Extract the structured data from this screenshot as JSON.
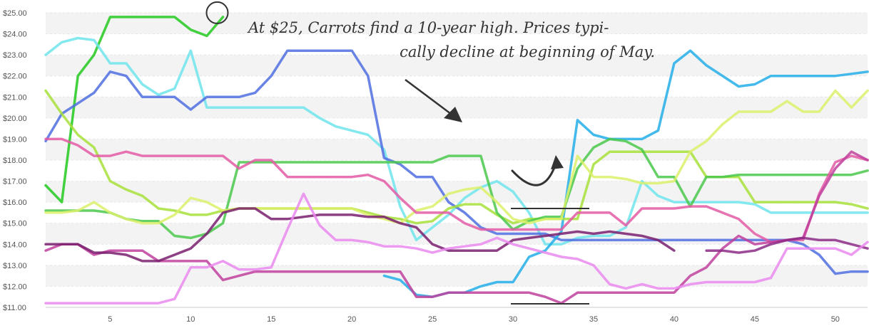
{
  "annotation": {
    "line1": "At $25, Carrots find a 10-year high. Prices typi-",
    "line2": "cally decline at beginning of May."
  },
  "chart_data": {
    "type": "line",
    "title": "",
    "xlabel": "",
    "ylabel": "",
    "xlim": [
      1,
      52
    ],
    "ylim": [
      11,
      25
    ],
    "x_ticks": [
      5,
      10,
      15,
      20,
      25,
      30,
      35,
      40,
      45,
      50
    ],
    "y_ticks": [
      "$11.00",
      "$12.00",
      "$13.00",
      "$14.00",
      "$15.00",
      "$16.00",
      "$17.00",
      "$18.00",
      "$19.00",
      "$20.00",
      "$21.00",
      "$22.00",
      "$23.00",
      "$24.00",
      "$25.00"
    ],
    "grid": "horizontal-bands",
    "legend": "none",
    "highlight_point": {
      "x": 12,
      "y": 24.8
    },
    "series": [
      {
        "color": "#22c91f",
        "x": [
          1,
          2,
          3,
          4,
          5,
          6,
          7,
          8,
          9,
          10,
          11,
          12
        ],
        "values": [
          16.8,
          16.0,
          22.0,
          23.0,
          24.8,
          24.8,
          24.8,
          24.8,
          24.8,
          24.2,
          23.9,
          24.8
        ]
      },
      {
        "color": "#6fe4ec",
        "x": [
          1,
          2,
          3,
          4,
          5,
          6,
          7,
          8,
          9,
          10,
          11,
          12,
          13,
          14,
          15,
          16,
          17,
          18,
          19,
          20,
          21,
          22,
          23,
          24,
          25,
          26,
          27,
          28,
          29,
          30,
          31,
          32,
          33,
          34,
          35,
          36,
          37,
          38,
          39,
          40,
          41,
          42,
          43,
          44,
          45,
          46,
          47,
          48,
          49,
          50,
          51,
          52
        ],
        "values": [
          23.0,
          23.6,
          23.8,
          23.7,
          22.6,
          22.6,
          21.6,
          21.1,
          21.4,
          23.2,
          20.5,
          20.5,
          20.5,
          20.5,
          20.5,
          20.5,
          20.5,
          20.0,
          19.6,
          19.4,
          19.2,
          18.5,
          15.8,
          14.2,
          14.8,
          15.4,
          16.2,
          16.7,
          17.0,
          16.5,
          15.5,
          14.0,
          14.0,
          14.3,
          14.4,
          14.4,
          14.8,
          17.0,
          16.3,
          16.0,
          16.0,
          16.0,
          16.0,
          16.0,
          15.9,
          15.5,
          15.5,
          15.5,
          15.5,
          15.5,
          15.5,
          15.5
        ]
      },
      {
        "color": "#4f6fe0",
        "x": [
          1,
          2,
          3,
          4,
          5,
          6,
          7,
          8,
          9,
          10,
          11,
          12,
          13,
          14,
          15,
          16,
          17,
          18,
          19,
          20,
          21,
          22,
          23,
          24,
          25,
          26,
          27,
          28,
          29,
          30,
          31,
          32,
          33,
          34,
          35,
          36,
          37,
          38,
          39,
          40,
          41,
          42,
          43,
          44,
          45,
          46,
          47,
          48,
          49,
          50,
          51,
          52
        ],
        "values": [
          18.9,
          20.2,
          20.7,
          21.2,
          22.2,
          22.0,
          21.0,
          21.0,
          21.0,
          20.4,
          21.0,
          21.0,
          21.0,
          21.2,
          22.0,
          23.2,
          23.2,
          23.2,
          23.2,
          23.2,
          22.0,
          18.1,
          17.8,
          17.2,
          17.2,
          16.0,
          15.5,
          14.8,
          14.5,
          14.5,
          14.5,
          14.5,
          14.2,
          14.2,
          14.2,
          14.2,
          14.2,
          14.2,
          14.2,
          14.2,
          14.2,
          14.2,
          14.2,
          14.2,
          14.2,
          14.2,
          14.2,
          14.0,
          13.5,
          12.6,
          12.7,
          12.7
        ]
      },
      {
        "color": "#22aee8",
        "x": [
          22,
          23,
          24,
          25,
          26,
          27,
          28,
          29,
          30,
          31,
          32,
          33,
          34,
          35,
          36,
          37,
          38,
          39,
          40,
          41,
          42,
          43,
          44,
          45,
          46,
          47,
          48,
          49,
          50,
          51,
          52
        ],
        "values": [
          12.5,
          12.3,
          11.6,
          11.5,
          11.7,
          11.7,
          12.0,
          12.2,
          12.2,
          13.4,
          13.7,
          14.6,
          19.9,
          19.2,
          19.0,
          19.0,
          19.0,
          19.4,
          22.6,
          23.2,
          22.5,
          22.0,
          21.5,
          21.6,
          22.0,
          22.0,
          22.0,
          22.0,
          22.0,
          22.1,
          22.2
        ]
      },
      {
        "color": "#a7e03a",
        "x": [
          1,
          2,
          3,
          4,
          5,
          6,
          7,
          8,
          9,
          10,
          11,
          12,
          13,
          14,
          15,
          16,
          17,
          18,
          19,
          20,
          21,
          22,
          23,
          24,
          25,
          26,
          27,
          28,
          29,
          30,
          31,
          32,
          33,
          34,
          35,
          36,
          37,
          38,
          39,
          40,
          41,
          42,
          43,
          44,
          45,
          46,
          47,
          48,
          49,
          50,
          51,
          52
        ],
        "values": [
          21.3,
          20.2,
          19.2,
          18.6,
          17.0,
          16.6,
          16.3,
          15.7,
          15.6,
          15.4,
          15.4,
          15.6,
          15.7,
          15.7,
          15.7,
          15.7,
          15.7,
          15.7,
          15.7,
          15.7,
          15.5,
          15.3,
          15.2,
          15.0,
          15.1,
          15.7,
          15.9,
          15.9,
          15.4,
          15.0,
          15.2,
          15.2,
          15.2,
          15.2,
          17.8,
          18.4,
          18.4,
          18.4,
          18.4,
          18.4,
          18.4,
          17.2,
          17.2,
          17.2,
          16.0,
          16.0,
          16.0,
          16.0,
          16.0,
          16.0,
          15.9,
          15.7
        ]
      },
      {
        "color": "#49c84a",
        "x": [
          1,
          2,
          3,
          4,
          5,
          6,
          7,
          8,
          9,
          10,
          11,
          12,
          13,
          14,
          15,
          16,
          17,
          18,
          19,
          20,
          21,
          22,
          23,
          24,
          25,
          26,
          27,
          28,
          29,
          30,
          31,
          32,
          33,
          34,
          35,
          36,
          37,
          38,
          39,
          40,
          41,
          42,
          43,
          44,
          45,
          46,
          47,
          48,
          49,
          50,
          51,
          52
        ],
        "values": [
          15.6,
          15.6,
          15.6,
          15.6,
          15.5,
          15.2,
          15.1,
          15.1,
          14.4,
          14.3,
          14.5,
          15.0,
          17.9,
          17.9,
          17.9,
          17.9,
          17.9,
          17.9,
          17.9,
          17.9,
          17.9,
          17.9,
          17.9,
          17.9,
          17.9,
          18.2,
          18.2,
          18.2,
          15.5,
          14.7,
          15.1,
          15.3,
          15.3,
          17.6,
          18.6,
          19.0,
          18.9,
          18.5,
          17.2,
          17.2,
          15.8,
          17.2,
          17.2,
          17.3,
          17.3,
          17.3,
          17.3,
          17.3,
          17.3,
          17.3,
          17.3,
          17.5
        ]
      },
      {
        "color": "#dcf06a",
        "x": [
          1,
          2,
          3,
          4,
          5,
          6,
          7,
          8,
          9,
          10,
          11,
          12,
          13,
          14,
          15,
          16,
          17,
          18,
          19,
          20,
          21,
          22,
          23,
          24,
          25,
          26,
          27,
          28,
          29,
          30,
          31,
          32,
          33,
          34,
          35,
          36,
          37,
          38,
          39,
          40,
          41,
          42,
          43,
          44,
          45,
          46,
          47,
          48,
          49,
          50,
          51,
          52
        ],
        "values": [
          15.5,
          15.5,
          15.6,
          16.0,
          15.5,
          15.2,
          15.0,
          15.0,
          15.4,
          16.2,
          16.0,
          15.6,
          15.7,
          15.7,
          15.7,
          15.7,
          15.7,
          15.7,
          15.7,
          15.7,
          15.4,
          15.2,
          15.0,
          15.6,
          15.8,
          16.4,
          16.6,
          16.7,
          16.0,
          15.2,
          15.0,
          15.2,
          15.2,
          18.2,
          17.2,
          17.2,
          17.1,
          16.9,
          16.9,
          17.0,
          18.4,
          18.9,
          19.7,
          20.3,
          20.3,
          20.3,
          20.8,
          20.3,
          20.3,
          21.3,
          20.5,
          21.3
        ]
      },
      {
        "color": "#e35aa6",
        "x": [
          1,
          2,
          3,
          4,
          5,
          6,
          7,
          8,
          9,
          10,
          11,
          12,
          13,
          14,
          15,
          16,
          17,
          18,
          19,
          20,
          21,
          22,
          23,
          24,
          25,
          26,
          27,
          28,
          29,
          30,
          31,
          32,
          33,
          34,
          35,
          36,
          37,
          38,
          39,
          40,
          41,
          42,
          43,
          44,
          45,
          46,
          47,
          48,
          49,
          50,
          51,
          52
        ],
        "values": [
          19.0,
          19.0,
          18.7,
          18.2,
          18.2,
          18.4,
          18.2,
          18.2,
          18.2,
          18.2,
          18.2,
          18.2,
          17.6,
          18.0,
          18.0,
          17.2,
          17.2,
          17.2,
          17.2,
          17.2,
          17.3,
          17.0,
          16.2,
          15.5,
          15.5,
          15.5,
          15.0,
          14.7,
          14.7,
          14.7,
          14.7,
          14.7,
          14.7,
          15.5,
          15.5,
          15.5,
          14.9,
          15.7,
          15.7,
          15.7,
          15.8,
          15.8,
          15.5,
          15.2,
          14.5,
          14.1,
          14.2,
          14.2,
          16.4,
          17.9,
          18.2,
          18.0
        ]
      },
      {
        "color": "#c03f9c",
        "x": [
          1,
          2,
          3,
          4,
          5,
          6,
          7,
          8,
          9,
          10,
          11,
          12,
          13,
          14,
          15,
          16,
          17,
          18,
          19,
          20,
          21,
          22,
          23,
          24,
          25,
          26,
          27,
          28,
          29,
          30,
          31,
          32,
          33,
          34,
          35,
          36,
          37,
          38,
          39,
          40,
          41,
          42,
          43,
          44,
          45,
          46,
          47,
          48,
          49,
          50,
          51,
          52
        ],
        "values": [
          13.7,
          14.0,
          14.0,
          13.5,
          13.7,
          13.7,
          13.7,
          13.2,
          13.2,
          13.2,
          13.2,
          12.3,
          12.5,
          12.7,
          12.7,
          12.7,
          12.7,
          12.7,
          12.7,
          12.7,
          12.7,
          12.7,
          12.7,
          11.5,
          11.5,
          11.7,
          11.7,
          11.7,
          11.7,
          11.7,
          11.7,
          11.5,
          11.2,
          11.7,
          11.7,
          11.7,
          11.7,
          11.7,
          11.7,
          11.7,
          12.5,
          12.9,
          13.8,
          14.4,
          14.0,
          14.1,
          14.2,
          14.3,
          16.3,
          17.6,
          18.4,
          18.0
        ]
      },
      {
        "color": "#7a1f6f",
        "x": [
          1,
          2,
          3,
          4,
          5,
          6,
          7,
          8,
          9,
          10,
          11,
          12,
          13,
          14,
          15,
          16,
          17,
          18,
          19,
          20,
          21,
          22,
          23,
          24,
          25,
          26,
          27,
          28,
          29,
          30,
          31,
          32,
          33,
          34,
          35,
          36,
          37,
          38,
          39,
          40
        ],
        "values": [
          14.0,
          14.0,
          14.0,
          13.6,
          13.6,
          13.5,
          13.2,
          13.2,
          13.5,
          13.8,
          14.5,
          15.5,
          15.7,
          15.7,
          15.2,
          15.2,
          15.3,
          15.4,
          15.4,
          15.4,
          15.3,
          15.3,
          15.0,
          14.8,
          14.0,
          13.7,
          13.7,
          13.7,
          13.7,
          14.2,
          14.3,
          14.4,
          14.5,
          14.6,
          14.5,
          14.6,
          14.5,
          14.4,
          14.2,
          13.7
        ]
      },
      {
        "color": "#8c2a86",
        "x": [
          42,
          43,
          44,
          45,
          46,
          47,
          48,
          49,
          50,
          51,
          52
        ],
        "values": [
          13.7,
          13.7,
          13.6,
          13.7,
          14.0,
          14.2,
          14.3,
          14.2,
          14.2,
          14.0,
          13.8
        ]
      },
      {
        "color": "#ea88ee",
        "x": [
          1,
          2,
          3,
          4,
          5,
          6,
          7,
          8,
          9,
          10,
          11,
          12,
          13,
          14,
          15,
          16,
          17,
          18,
          19,
          20,
          21,
          22,
          23,
          24,
          25,
          26,
          27,
          28,
          29,
          30,
          31,
          32,
          33,
          34,
          35,
          36,
          37,
          38,
          39,
          40,
          41,
          42,
          43,
          44,
          45,
          46,
          47,
          48,
          49,
          50,
          51,
          52
        ],
        "values": [
          11.2,
          11.2,
          11.2,
          11.2,
          11.2,
          11.2,
          11.2,
          11.2,
          11.4,
          12.9,
          12.9,
          13.2,
          12.8,
          12.8,
          12.9,
          14.7,
          16.4,
          14.9,
          14.2,
          14.2,
          14.1,
          13.9,
          13.9,
          13.8,
          13.6,
          13.8,
          13.9,
          14.0,
          14.3,
          14.0,
          13.8,
          13.6,
          13.4,
          13.3,
          13.0,
          12.1,
          11.9,
          12.1,
          11.9,
          11.9,
          12.1,
          12.2,
          12.2,
          12.2,
          12.2,
          12.4,
          13.8,
          13.8,
          13.8,
          13.8,
          13.5,
          14.1
        ]
      }
    ]
  }
}
